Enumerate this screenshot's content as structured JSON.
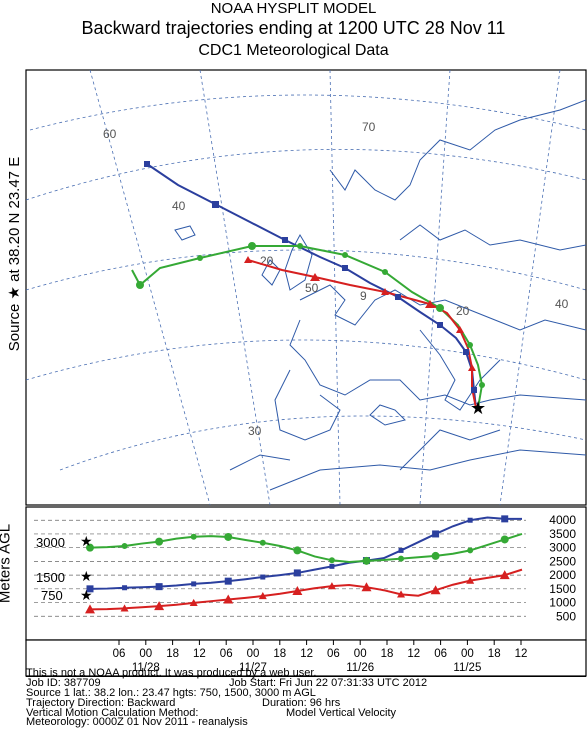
{
  "header": {
    "line1": "NOAA HYSPLIT MODEL",
    "line2": "Backward trajectories ending at 1200 UTC 28 Nov 11",
    "line3": "CDC1 Meteorological Data"
  },
  "side_label": "Source ★ at 38.20 N 23.47 E",
  "map": {
    "lat_labels": [
      "60",
      "40",
      "20",
      "50",
      "9",
      "20",
      "30"
    ],
    "lon_labels": [
      "70",
      "40"
    ]
  },
  "chart_data": {
    "type": "line",
    "ylabel": "Meters AGL",
    "y_ticks": [
      "4000",
      "3500",
      "3000",
      "2500",
      "2000",
      "1500",
      "1000",
      "500"
    ],
    "start_heights": [
      "3000",
      "1500",
      "750"
    ],
    "x_time_ticks": [
      "06",
      "00",
      "18",
      "12",
      "06",
      "00",
      "18",
      "12",
      "06",
      "00",
      "18",
      "12",
      "06",
      "00",
      "18",
      "12"
    ],
    "x_date_labels": [
      "11/28",
      "11/27",
      "11/26",
      "11/25"
    ],
    "series": [
      {
        "color": "#2b3f9e",
        "start": 1500,
        "values": [
          1500,
          1510,
          1540,
          1560,
          1580,
          1620,
          1680,
          1720,
          1780,
          1850,
          1930,
          2000,
          2080,
          2200,
          2320,
          2450,
          2530,
          2620,
          2900,
          3200,
          3500,
          3780,
          4000,
          4100,
          4050,
          4050
        ]
      },
      {
        "color": "#35a935",
        "start": 3000,
        "values": [
          3000,
          3020,
          3060,
          3150,
          3220,
          3330,
          3400,
          3420,
          3390,
          3280,
          3180,
          3060,
          2900,
          2680,
          2540,
          2480,
          2520,
          2550,
          2600,
          2650,
          2700,
          2780,
          2900,
          3100,
          3300,
          3500
        ]
      },
      {
        "color": "#d62020",
        "start": 750,
        "values": [
          750,
          760,
          790,
          830,
          870,
          920,
          990,
          1050,
          1110,
          1170,
          1240,
          1320,
          1420,
          1520,
          1600,
          1640,
          1560,
          1450,
          1300,
          1250,
          1450,
          1650,
          1800,
          1900,
          2000,
          2200
        ]
      }
    ]
  },
  "info": {
    "l1": "This is not a NOAA product. It was produced by a web user.",
    "l2a": "Job ID: 387709",
    "l2b": "Job Start: Fri Jun 22 07:31:33 UTC 2012",
    "l3": "Source 1 lat.: 38.2  lon.: 23.47  hgts: 750, 1500, 3000 m AGL",
    "l4a": "Trajectory Direction: Backward",
    "l4b": "Duration: 96 hrs",
    "l5a": "Vertical Motion Calculation Method:",
    "l5b": "Model Vertical Velocity",
    "l6": "Meteorology: 0000Z 01 Nov 2011 - reanalysis"
  }
}
